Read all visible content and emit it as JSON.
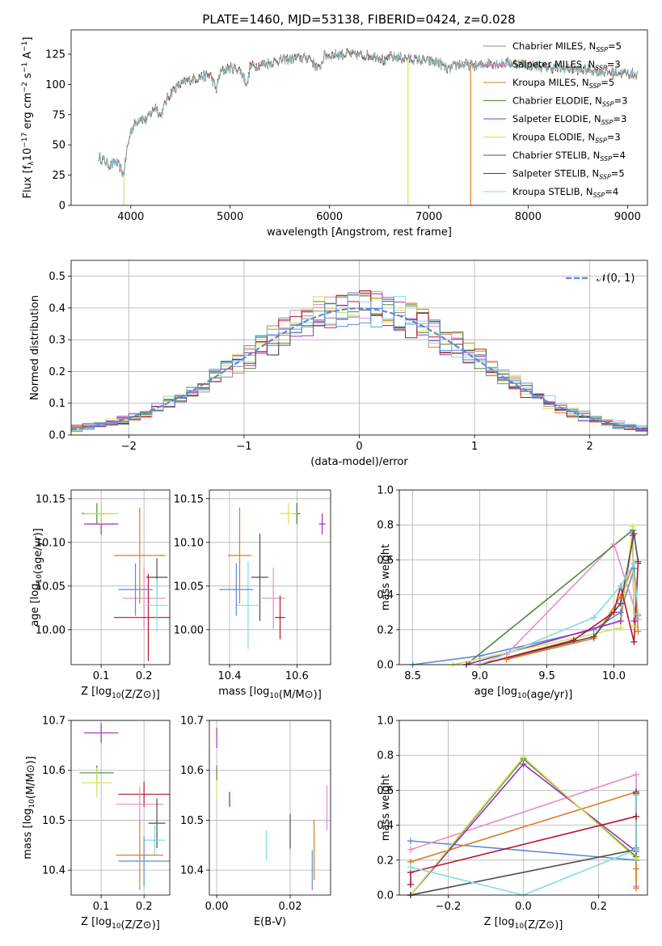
{
  "figure_title": "PLATE=1460, MJD=53138, FIBERID=0424, z=0.028",
  "colors": {
    "Chabrier MILES": "#7f8c9a",
    "Salpeter MILES": "#e78ac3",
    "Kroupa MILES": "#e07b1f",
    "Chabrier ELODIE": "#4b8b3b",
    "Salpeter ELODIE": "#9b30b8",
    "Kroupa ELODIE": "#d6e256",
    "Chabrier STELIB": "#4d4d4d",
    "Salpeter STELIB": "#b2182b",
    "Kroupa STELIB": "#80dde0",
    "normal": "#5b8bd8"
  },
  "chart_data": [
    {
      "type": "line",
      "id": "spectrum",
      "xlabel": "wavelength [Angstrom, rest frame]",
      "ylabel": "Flux [f$_\\lambda$10$^{-17}$ erg cm$^{-2}$ s$^{-1}$ A$^{-1}$]",
      "xlim": [
        3400,
        9200
      ],
      "ylim": [
        0,
        145
      ],
      "xticks": [
        4000,
        5000,
        6000,
        7000,
        8000,
        9000
      ],
      "yticks": [
        0,
        25,
        50,
        75,
        100,
        125
      ],
      "legend_position": "top-right",
      "legend": [
        {
          "series": "Chabrier MILES",
          "label": "Chabrier MILES, N",
          "sub": "SSP",
          "suffix": "=5"
        },
        {
          "series": "Salpeter MILES",
          "label": "Salpeter MILES, N",
          "sub": "SSP",
          "suffix": "=3"
        },
        {
          "series": "Kroupa MILES",
          "label": "Kroupa MILES, N",
          "sub": "SSP",
          "suffix": "=5"
        },
        {
          "series": "Chabrier ELODIE",
          "label": "Chabrier ELODIE, N",
          "sub": "SSP",
          "suffix": "=3"
        },
        {
          "series": "Salpeter ELODIE",
          "label": "Salpeter ELODIE, N",
          "sub": "SSP",
          "suffix": "=3"
        },
        {
          "series": "Kroupa ELODIE",
          "label": "Kroupa ELODIE, N",
          "sub": "SSP",
          "suffix": "=3"
        },
        {
          "series": "Chabrier STELIB",
          "label": "Chabrier STELIB, N",
          "sub": "SSP",
          "suffix": "=4"
        },
        {
          "series": "Salpeter STELIB",
          "label": "Salpeter STELIB, N",
          "sub": "SSP",
          "suffix": "=5"
        },
        {
          "series": "Kroupa STELIB",
          "label": "Kroupa STELIB, N",
          "sub": "SSP",
          "suffix": "=4"
        }
      ],
      "continuum": {
        "x": [
          3680,
          3720,
          3760,
          3800,
          3850,
          3900,
          3930,
          3960,
          4000,
          4050,
          4100,
          4150,
          4200,
          4250,
          4300,
          4350,
          4400,
          4450,
          4500,
          4600,
          4700,
          4800,
          4861,
          4900,
          5000,
          5100,
          5175,
          5200,
          5300,
          5400,
          5500,
          5600,
          5700,
          5800,
          5893,
          5950,
          6000,
          6100,
          6200,
          6300,
          6400,
          6500,
          6563,
          6600,
          6700,
          6800,
          6900,
          7000,
          7100,
          7200,
          7300,
          7400,
          7500,
          7600,
          7700,
          7800,
          7900,
          8000,
          8100,
          8200,
          8300,
          8400,
          8500,
          8600,
          8700,
          8800,
          8900,
          9000,
          9100
        ],
        "y": [
          40,
          38,
          35,
          33,
          36,
          30,
          25,
          45,
          62,
          68,
          73,
          70,
          76,
          82,
          74,
          85,
          93,
          97,
          100,
          104,
          106,
          108,
          96,
          110,
          114,
          112,
          100,
          115,
          116,
          118,
          120,
          121,
          122,
          122,
          112,
          124,
          124,
          125,
          125,
          124,
          124,
          123,
          118,
          123,
          122,
          121,
          120,
          119,
          118,
          112,
          117,
          116,
          115,
          118,
          117,
          118,
          117,
          116,
          115,
          114,
          113,
          113,
          112,
          112,
          111,
          110,
          110,
          109,
          108
        ]
      },
      "spikes": [
        {
          "x": 3930,
          "y": 0,
          "series": "Kroupa ELODIE"
        },
        {
          "x": 6790,
          "y": 0,
          "series": "Kroupa ELODIE"
        },
        {
          "x": 7420,
          "y": 0,
          "series": "Kroupa MILES"
        }
      ]
    },
    {
      "type": "step",
      "id": "residuals",
      "xlabel": "(data-model)/error",
      "ylabel": "Normed distribution",
      "xlim": [
        -2.5,
        2.5
      ],
      "ylim": [
        0,
        0.55
      ],
      "xticks": [
        -2,
        -1,
        0,
        1,
        2
      ],
      "yticks": [
        0.0,
        0.1,
        0.2,
        0.3,
        0.4,
        0.5
      ],
      "grid": true,
      "legend": [
        {
          "series": "normal",
          "label": "𝒩(0, 1)",
          "style": "dashed"
        }
      ],
      "legend_position": "top-right",
      "bin_width": 0.1,
      "reference_curve": "normal pdf (mean 0, sigma 1)"
    },
    {
      "type": "errorbar",
      "id": "age-vs-Z",
      "xlabel": "Z [log10(Z/Z⊙)]",
      "ylabel": "age  [log10(age/yr)]",
      "xlim": [
        0.03,
        0.26
      ],
      "ylim": [
        9.96,
        10.16
      ],
      "xticks": [
        0.1,
        0.2
      ],
      "yticks": [
        10.0,
        10.05,
        10.1,
        10.15
      ],
      "grid": true,
      "points": [
        {
          "series": "Chabrier MILES",
          "x": 0.1,
          "y": 10.133,
          "xerr": 0.04,
          "yerr": 0.012
        },
        {
          "series": "Salpeter MILES",
          "x": 0.2,
          "y": 10.036,
          "xerr": 0.05,
          "yerr": 0.035
        },
        {
          "series": "Kroupa MILES",
          "x": 0.19,
          "y": 10.085,
          "xerr": 0.06,
          "yerr": 0.055
        },
        {
          "series": "Chabrier ELODIE",
          "x": 0.09,
          "y": 10.133,
          "xerr": 0.035,
          "yerr": 0.012
        },
        {
          "series": "Salpeter ELODIE",
          "x": 0.1,
          "y": 10.121,
          "xerr": 0.04,
          "yerr": 0.012
        },
        {
          "series": "Kroupa ELODIE",
          "x": 0.1,
          "y": 10.133,
          "xerr": 0.04,
          "yerr": 0.012
        },
        {
          "series": "Chabrier STELIB",
          "x": 0.23,
          "y": 10.06,
          "xerr": 0.025,
          "yerr": 0.022
        },
        {
          "series": "Salpeter STELIB",
          "x": 0.21,
          "y": 10.014,
          "xerr": 0.08,
          "yerr": 0.05
        },
        {
          "series": "Kroupa STELIB",
          "x": 0.23,
          "y": 10.028,
          "xerr": 0.025,
          "yerr": 0.03
        },
        {
          "series": "normal",
          "x": 0.18,
          "y": 10.046,
          "xerr": 0.04,
          "yerr": 0.03
        }
      ]
    },
    {
      "type": "errorbar",
      "id": "age-vs-mass",
      "xlabel": "mass [log10(M/M⊙)]",
      "ylabel": "",
      "xlim": [
        10.34,
        10.7
      ],
      "ylim": [
        9.96,
        10.16
      ],
      "xticks": [
        10.4,
        10.6
      ],
      "yticks": [
        10.0,
        10.05,
        10.1,
        10.15
      ],
      "grid": true,
      "points": [
        {
          "series": "Chabrier MILES",
          "x": 10.6,
          "y": 10.133,
          "xerr": 0.01,
          "yerr": 0.012
        },
        {
          "series": "Salpeter MILES",
          "x": 10.53,
          "y": 10.036,
          "xerr": 0.035,
          "yerr": 0.035
        },
        {
          "series": "Kroupa MILES",
          "x": 10.43,
          "y": 10.085,
          "xerr": 0.035,
          "yerr": 0.055
        },
        {
          "series": "Chabrier ELODIE",
          "x": 10.6,
          "y": 10.133,
          "xerr": 0.01,
          "yerr": 0.012
        },
        {
          "series": "Salpeter ELODIE",
          "x": 10.675,
          "y": 10.121,
          "xerr": 0.01,
          "yerr": 0.012
        },
        {
          "series": "Kroupa ELODIE",
          "x": 10.575,
          "y": 10.133,
          "xerr": 0.025,
          "yerr": 0.012
        },
        {
          "series": "Chabrier STELIB",
          "x": 10.49,
          "y": 10.06,
          "xerr": 0.025,
          "yerr": 0.05
        },
        {
          "series": "Salpeter STELIB",
          "x": 10.55,
          "y": 10.014,
          "xerr": 0.015,
          "yerr": 0.025
        },
        {
          "series": "Kroupa STELIB",
          "x": 10.455,
          "y": 10.028,
          "xerr": 0.035,
          "yerr": 0.05
        },
        {
          "series": "normal",
          "x": 10.42,
          "y": 10.046,
          "xerr": 0.05,
          "yerr": 0.03
        }
      ]
    },
    {
      "type": "line",
      "id": "weight-vs-age",
      "xlabel": "age  [log10(age/yr)]",
      "ylabel": "mass weight",
      "xlim": [
        8.4,
        10.25
      ],
      "ylim": [
        0,
        1.0
      ],
      "xticks": [
        8.5,
        9.0,
        9.5,
        10.0
      ],
      "yticks": [
        0.0,
        0.2,
        0.4,
        0.6,
        0.8,
        1.0
      ],
      "grid": true,
      "marker": "+",
      "series": [
        {
          "name": "normal",
          "x": [
            8.5,
            9.0,
            9.85,
            10.05,
            10.15,
            10.18
          ],
          "y": [
            0.0,
            0.05,
            0.2,
            0.3,
            0.55,
            0.28
          ]
        },
        {
          "name": "Salpeter MILES",
          "x": [
            9.2,
            10.0,
            10.18
          ],
          "y": [
            0.06,
            0.69,
            0.26
          ]
        },
        {
          "name": "Kroupa MILES",
          "x": [
            9.2,
            9.85,
            10.05,
            10.15,
            10.18
          ],
          "y": [
            0.03,
            0.15,
            0.39,
            0.58,
            0.19
          ]
        },
        {
          "name": "Chabrier ELODIE",
          "x": [
            8.9,
            10.14,
            10.15
          ],
          "y": [
            0.0,
            0.77,
            0.22
          ]
        },
        {
          "name": "Salpeter ELODIE",
          "x": [
            8.9,
            10.05,
            10.14,
            10.15
          ],
          "y": [
            0.0,
            0.25,
            0.74,
            0.25
          ]
        },
        {
          "name": "Kroupa ELODIE",
          "x": [
            8.8,
            10.05,
            10.14,
            10.15
          ],
          "y": [
            0.0,
            0.21,
            0.79,
            0.22
          ]
        },
        {
          "name": "Chabrier STELIB",
          "x": [
            9.0,
            9.85,
            10.05,
            10.15,
            10.18
          ],
          "y": [
            0.0,
            0.16,
            0.35,
            0.75,
            0.59
          ]
        },
        {
          "name": "Salpeter STELIB",
          "x": [
            9.0,
            9.7,
            10.0,
            10.05,
            10.15,
            10.18
          ],
          "y": [
            0.0,
            0.14,
            0.3,
            0.45,
            0.13,
            0.58
          ]
        },
        {
          "name": "Kroupa STELIB",
          "x": [
            9.0,
            9.85,
            10.05,
            10.15,
            10.18
          ],
          "y": [
            0.0,
            0.27,
            0.45,
            0.58,
            0.29
          ]
        }
      ]
    },
    {
      "type": "errorbar",
      "id": "mass-vs-Z",
      "xlabel": "Z [log10(Z/Z⊙)]",
      "ylabel": "mass [log10(M/M⊙)]",
      "xlim": [
        0.03,
        0.26
      ],
      "ylim": [
        10.35,
        10.7
      ],
      "xticks": [
        0.1,
        0.2
      ],
      "yticks": [
        10.4,
        10.5,
        10.6,
        10.7
      ],
      "grid": true,
      "points": [
        {
          "series": "Salpeter ELODIE",
          "x": 0.1,
          "y": 10.675,
          "xerr": 0.04,
          "yerr": 0.02
        },
        {
          "series": "Chabrier ELODIE",
          "x": 0.09,
          "y": 10.595,
          "xerr": 0.04,
          "yerr": 0.015
        },
        {
          "series": "Kroupa ELODIE",
          "x": 0.09,
          "y": 10.575,
          "xerr": 0.035,
          "yerr": 0.03
        },
        {
          "series": "Salpeter STELIB",
          "x": 0.2,
          "y": 10.552,
          "xerr": 0.06,
          "yerr": 0.025
        },
        {
          "series": "Salpeter MILES",
          "x": 0.19,
          "y": 10.532,
          "xerr": 0.055,
          "yerr": 0.035
        },
        {
          "series": "Chabrier STELIB",
          "x": 0.23,
          "y": 10.494,
          "xerr": 0.02,
          "yerr": 0.05
        },
        {
          "series": "Kroupa STELIB",
          "x": 0.225,
          "y": 10.46,
          "xerr": 0.025,
          "yerr": 0.03
        },
        {
          "series": "Kroupa MILES",
          "x": 0.19,
          "y": 10.43,
          "xerr": 0.055,
          "yerr": 0.07
        },
        {
          "series": "normal",
          "x": 0.2,
          "y": 10.418,
          "xerr": 0.06,
          "yerr": 0.05
        }
      ]
    },
    {
      "type": "errorbar",
      "id": "mass-vs-EBV",
      "xlabel": "E(B-V)",
      "ylabel": "",
      "xlim": [
        -0.002,
        0.031
      ],
      "ylim": [
        10.35,
        10.7
      ],
      "xticks": [
        0.0,
        0.02
      ],
      "yticks": [
        10.4,
        10.5,
        10.6,
        10.7
      ],
      "grid": true,
      "points": [
        {
          "series": "Salpeter ELODIE",
          "x": 0.0,
          "y": 10.665,
          "xerr": 0.0,
          "yerr": 0.02
        },
        {
          "series": "Kroupa ELODIE",
          "x": 0.0,
          "y": 10.575,
          "xerr": 0.0,
          "yerr": 0.03
        },
        {
          "series": "Chabrier ELODIE",
          "x": 0.0,
          "y": 10.595,
          "xerr": 0.0,
          "yerr": 0.015
        },
        {
          "series": "Salpeter STELIB",
          "x": 0.0035,
          "y": 10.542,
          "xerr": 0.0,
          "yerr": 0.015
        },
        {
          "series": "Salpeter MILES",
          "x": 0.03,
          "y": 10.525,
          "xerr": 0.0,
          "yerr": 0.045
        },
        {
          "series": "Chabrier STELIB",
          "x": 0.02,
          "y": 10.478,
          "xerr": 0.0,
          "yerr": 0.035
        },
        {
          "series": "Kroupa STELIB",
          "x": 0.0135,
          "y": 10.45,
          "xerr": 0.0,
          "yerr": 0.03
        },
        {
          "series": "Kroupa MILES",
          "x": 0.0265,
          "y": 10.44,
          "xerr": 0.0,
          "yerr": 0.06
        },
        {
          "series": "normal",
          "x": 0.026,
          "y": 10.4,
          "xerr": 0.0,
          "yerr": 0.04
        }
      ]
    },
    {
      "type": "line",
      "id": "weight-vs-Z",
      "xlabel": "Z [log10(Z/Z⊙)]",
      "ylabel": "mass weight",
      "xlim": [
        -0.33,
        0.33
      ],
      "ylim": [
        0,
        1.0
      ],
      "xticks": [
        -0.2,
        0.0,
        0.2
      ],
      "yticks": [
        0.0,
        0.2,
        0.4,
        0.6,
        0.8,
        1.0
      ],
      "grid": true,
      "marker": "+",
      "series": [
        {
          "name": "normal",
          "x": [
            -0.3,
            0.3,
            0.3
          ],
          "y": [
            0.31,
            0.2,
            0.27
          ]
        },
        {
          "name": "Salpeter MILES",
          "x": [
            -0.3,
            0.3,
            0.3
          ],
          "y": [
            0.26,
            0.69,
            0.05
          ]
        },
        {
          "name": "Kroupa MILES",
          "x": [
            -0.3,
            0.3,
            0.3,
            0.3
          ],
          "y": [
            0.19,
            0.59,
            0.04,
            0.15
          ]
        },
        {
          "name": "Chabrier ELODIE",
          "x": [
            -0.3,
            0.0,
            0.3
          ],
          "y": [
            0.0,
            0.78,
            0.22
          ]
        },
        {
          "name": "Salpeter ELODIE",
          "x": [
            -0.3,
            0.0,
            0.3
          ],
          "y": [
            0.0,
            0.75,
            0.25
          ]
        },
        {
          "name": "Kroupa ELODIE",
          "x": [
            -0.3,
            0.0,
            0.3
          ],
          "y": [
            0.0,
            0.79,
            0.21
          ]
        },
        {
          "name": "Chabrier STELIB",
          "x": [
            -0.3,
            0.3,
            0.3
          ],
          "y": [
            0.0,
            0.26,
            0.59
          ]
        },
        {
          "name": "Salpeter STELIB",
          "x": [
            -0.3,
            -0.3,
            0.3,
            0.3
          ],
          "y": [
            0.06,
            0.13,
            0.45,
            0.58
          ]
        },
        {
          "name": "Kroupa STELIB",
          "x": [
            -0.3,
            0.0,
            0.3,
            0.3
          ],
          "y": [
            0.16,
            0.0,
            0.26,
            0.57
          ]
        }
      ]
    }
  ]
}
